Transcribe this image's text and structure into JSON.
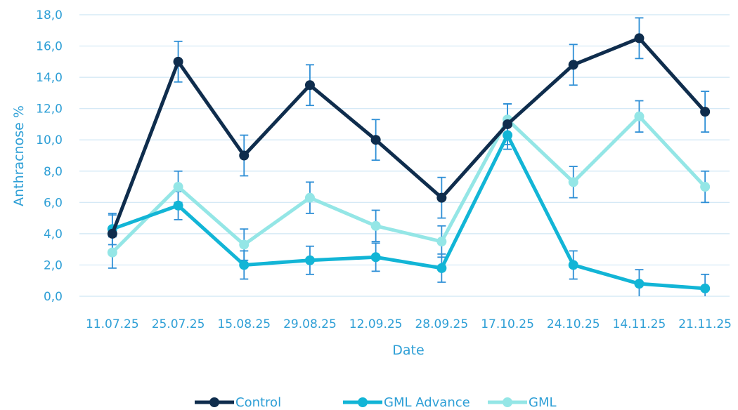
{
  "chart_data": {
    "type": "line",
    "title": "",
    "xlabel": "Date",
    "ylabel": "Anthracnose %",
    "ylim": [
      0,
      18
    ],
    "ytick_step": 2,
    "ytick_labels": [
      "0,0",
      "2,0",
      "4,0",
      "6,0",
      "8,0",
      "10,0",
      "12,0",
      "14,0",
      "16,0",
      "18,0"
    ],
    "categories": [
      "11.07.25",
      "25.07.25",
      "15.08.25",
      "29.08.25",
      "12.09.25",
      "28.09.25",
      "17.10.25",
      "24.10.25",
      "14.11.25",
      "21.11.25"
    ],
    "grid": true,
    "legend_position": "bottom",
    "error_bar_color": "#2e8fd6",
    "series": [
      {
        "name": "Control",
        "color": "#0f2d4d",
        "values": [
          4.0,
          15.0,
          9.0,
          13.5,
          10.0,
          6.3,
          11.0,
          14.8,
          16.5,
          11.8
        ],
        "errors": [
          1.2,
          1.3,
          1.3,
          1.3,
          1.3,
          1.3,
          1.3,
          1.3,
          1.3,
          1.3
        ]
      },
      {
        "name": "GML Advance",
        "color": "#12b5d6",
        "values": [
          4.3,
          5.8,
          2.0,
          2.3,
          2.5,
          1.8,
          10.3,
          2.0,
          0.8,
          0.5
        ],
        "errors": [
          1.0,
          0.9,
          0.9,
          0.9,
          0.9,
          0.9,
          0.9,
          0.9,
          0.9,
          0.9
        ]
      },
      {
        "name": "GML",
        "color": "#94e6e6",
        "values": [
          2.8,
          7.0,
          3.3,
          6.3,
          4.5,
          3.5,
          11.3,
          7.3,
          11.5,
          7.0
        ],
        "errors": [
          1.0,
          1.0,
          1.0,
          1.0,
          1.0,
          1.0,
          1.0,
          1.0,
          1.0,
          1.0
        ]
      }
    ]
  }
}
